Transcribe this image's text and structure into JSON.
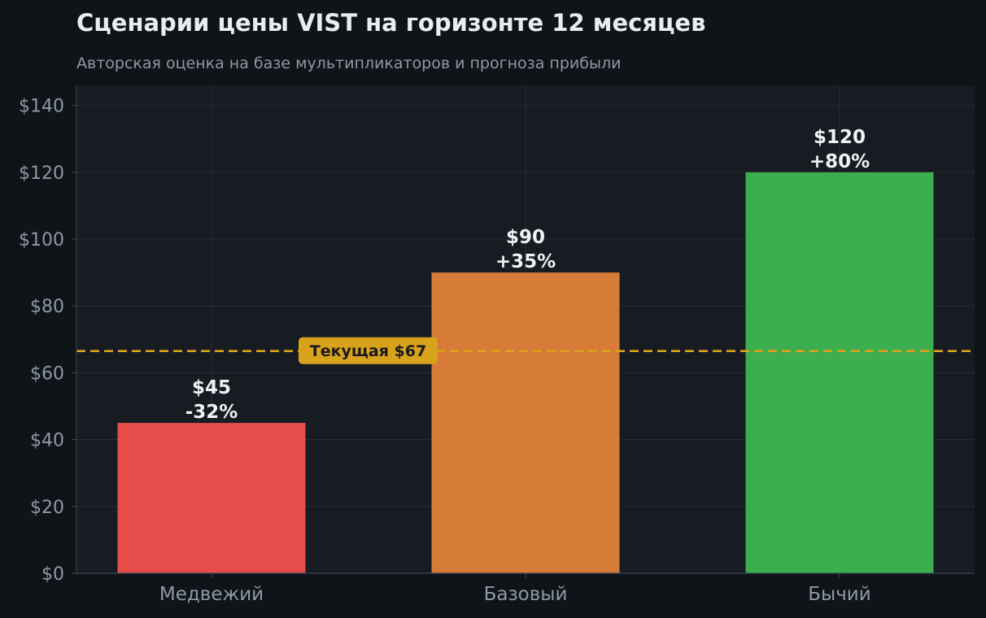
{
  "chart_data": {
    "type": "bar",
    "title": "Сценарии цены VIST на горизонте 12 месяцев",
    "subtitle": "Авторская оценка на базе мультипликаторов и прогноза прибыли",
    "xlabel": "",
    "ylabel": "",
    "ylim": [
      0,
      146
    ],
    "yticks": [
      0,
      20,
      40,
      60,
      80,
      100,
      120,
      140
    ],
    "ytick_labels": [
      "$0",
      "$20",
      "$40",
      "$60",
      "$80",
      "$100",
      "$120",
      "$140"
    ],
    "categories": [
      "Медвежий",
      "Базовый",
      "Бычий"
    ],
    "values": [
      45,
      90,
      120
    ],
    "value_labels": [
      "$45",
      "$90",
      "$120"
    ],
    "change_labels": [
      "-32%",
      "+35%",
      "+80%"
    ],
    "bar_colors": [
      "#e54d4a",
      "#d67b38",
      "#3cae4e"
    ],
    "reference_line": {
      "value": 66.5,
      "label": "Текущая $67",
      "color": "#d9a21b",
      "style": "dashed"
    },
    "grid": true,
    "legend": "none"
  },
  "colors": {
    "page_background": "#0f1419",
    "plot_background": "#171b22",
    "grid": "#252b35",
    "axis_text": "#8f98a6",
    "value_text": "#eef1f5"
  }
}
